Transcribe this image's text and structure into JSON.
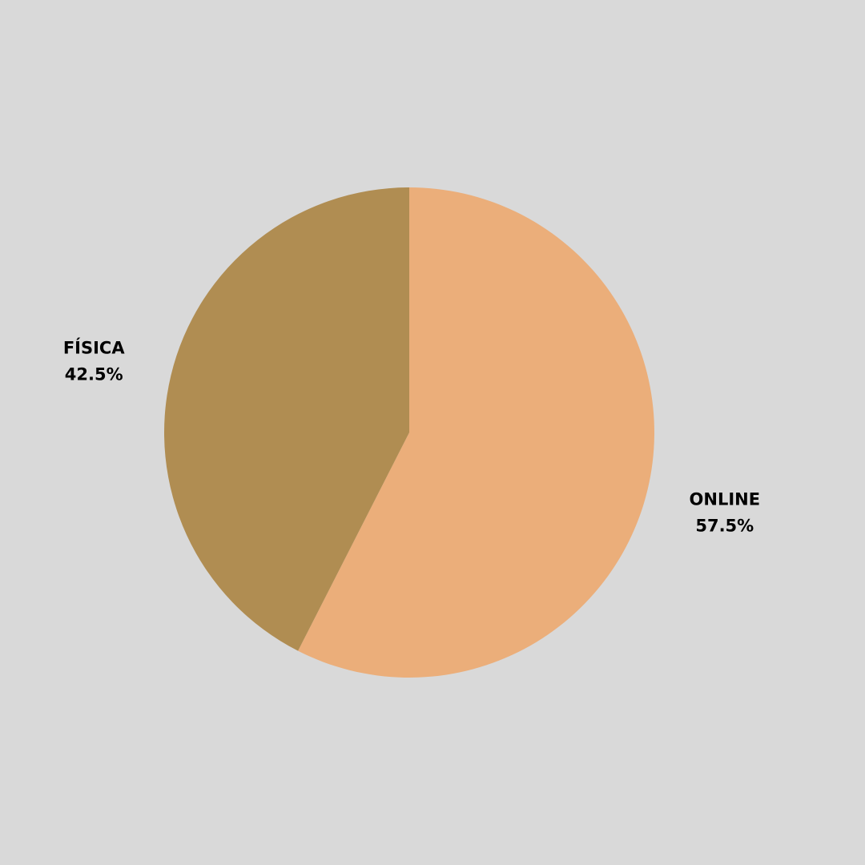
{
  "background_color": "#d9d9d9",
  "chart_data": {
    "type": "pie",
    "start_angle_deg": 0,
    "direction": "clockwise",
    "slices": [
      {
        "label": "ONLINE",
        "value": 57.5,
        "display": "57.5%",
        "color": "#ebae7a"
      },
      {
        "label": "FÍSICA",
        "value": 42.5,
        "display": "42.5%",
        "color": "#b08d52"
      }
    ]
  }
}
